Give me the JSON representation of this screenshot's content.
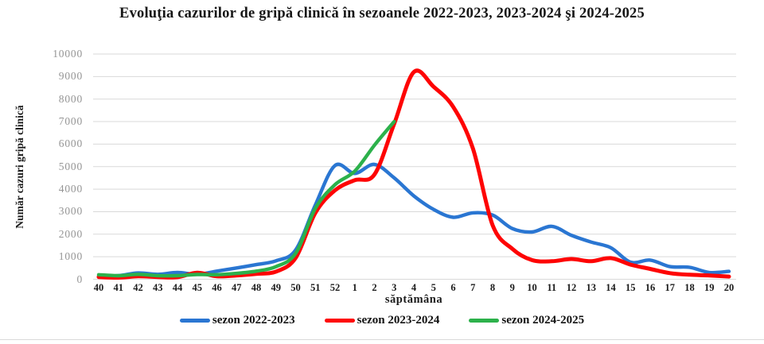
{
  "chart_data": {
    "type": "line",
    "title": "Evoluţia cazurilor de gripă clinică în sezoanele 2022-2023, 2023-2024 şi 2024-2025",
    "xlabel": "săptămâna",
    "ylabel": "Număr cazuri gripă clinică",
    "ylim": [
      0,
      10000
    ],
    "ytick_step": 1000,
    "grid": true,
    "smooth": true,
    "legend_position": "bottom",
    "categories": [
      "40",
      "41",
      "42",
      "43",
      "44",
      "45",
      "46",
      "47",
      "48",
      "49",
      "50",
      "51",
      "52",
      "1",
      "2",
      "3",
      "4",
      "5",
      "6",
      "7",
      "8",
      "9",
      "10",
      "11",
      "12",
      "13",
      "14",
      "15",
      "16",
      "17",
      "18",
      "19",
      "20"
    ],
    "series": [
      {
        "name": "sezon 2022-2023",
        "color": "#2a76d2",
        "values": [
          150,
          160,
          280,
          220,
          300,
          220,
          360,
          500,
          650,
          820,
          1300,
          3300,
          5050,
          4700,
          5100,
          4500,
          3700,
          3100,
          2750,
          2950,
          2850,
          2250,
          2100,
          2350,
          1950,
          1650,
          1400,
          760,
          850,
          560,
          530,
          300,
          350
        ]
      },
      {
        "name": "sezon 2023-2024",
        "color": "#fe0404",
        "values": [
          100,
          70,
          130,
          100,
          90,
          290,
          130,
          170,
          240,
          340,
          950,
          2950,
          3950,
          4400,
          4650,
          6900,
          9200,
          8550,
          7650,
          5800,
          2400,
          1350,
          850,
          800,
          900,
          800,
          940,
          650,
          460,
          270,
          200,
          170,
          120
        ]
      },
      {
        "name": "sezon 2024-2025",
        "color": "#2cb14b",
        "values": [
          200,
          160,
          220,
          160,
          160,
          210,
          200,
          260,
          360,
          560,
          1150,
          3150,
          4200,
          4800,
          5950,
          7000,
          null,
          null,
          null,
          null,
          null,
          null,
          null,
          null,
          null,
          null,
          null,
          null,
          null,
          null,
          null,
          null,
          null
        ]
      }
    ],
    "gridline_color": "#d9d9d9",
    "y_tick_labels": [
      "0",
      "1000",
      "2000",
      "3000",
      "4000",
      "5000",
      "6000",
      "7000",
      "8000",
      "9000",
      "10000"
    ]
  }
}
